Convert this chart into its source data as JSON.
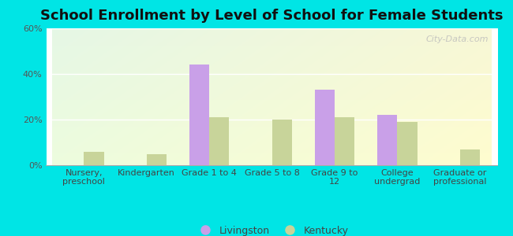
{
  "title": "School Enrollment by Level of School for Female Students",
  "categories": [
    "Nursery,\npreschool",
    "Kindergarten",
    "Grade 1 to 4",
    "Grade 5 to 8",
    "Grade 9 to\n12",
    "College\nundergrad",
    "Graduate or\nprofessional"
  ],
  "livingston_values": [
    0,
    0,
    44,
    0,
    33,
    22,
    0
  ],
  "kentucky_values": [
    6,
    5,
    21,
    20,
    21,
    19,
    7
  ],
  "livingston_color": "#c9a0e8",
  "kentucky_color": "#c8d49a",
  "background_color": "#00e5e5",
  "ylim": [
    0,
    60
  ],
  "yticks": [
    0,
    20,
    40,
    60
  ],
  "ytick_labels": [
    "0%",
    "20%",
    "40%",
    "60%"
  ],
  "bar_width": 0.32,
  "legend_labels": [
    "Livingston",
    "Kentucky"
  ],
  "title_fontsize": 13,
  "tick_fontsize": 8,
  "watermark": "City-Data.com"
}
